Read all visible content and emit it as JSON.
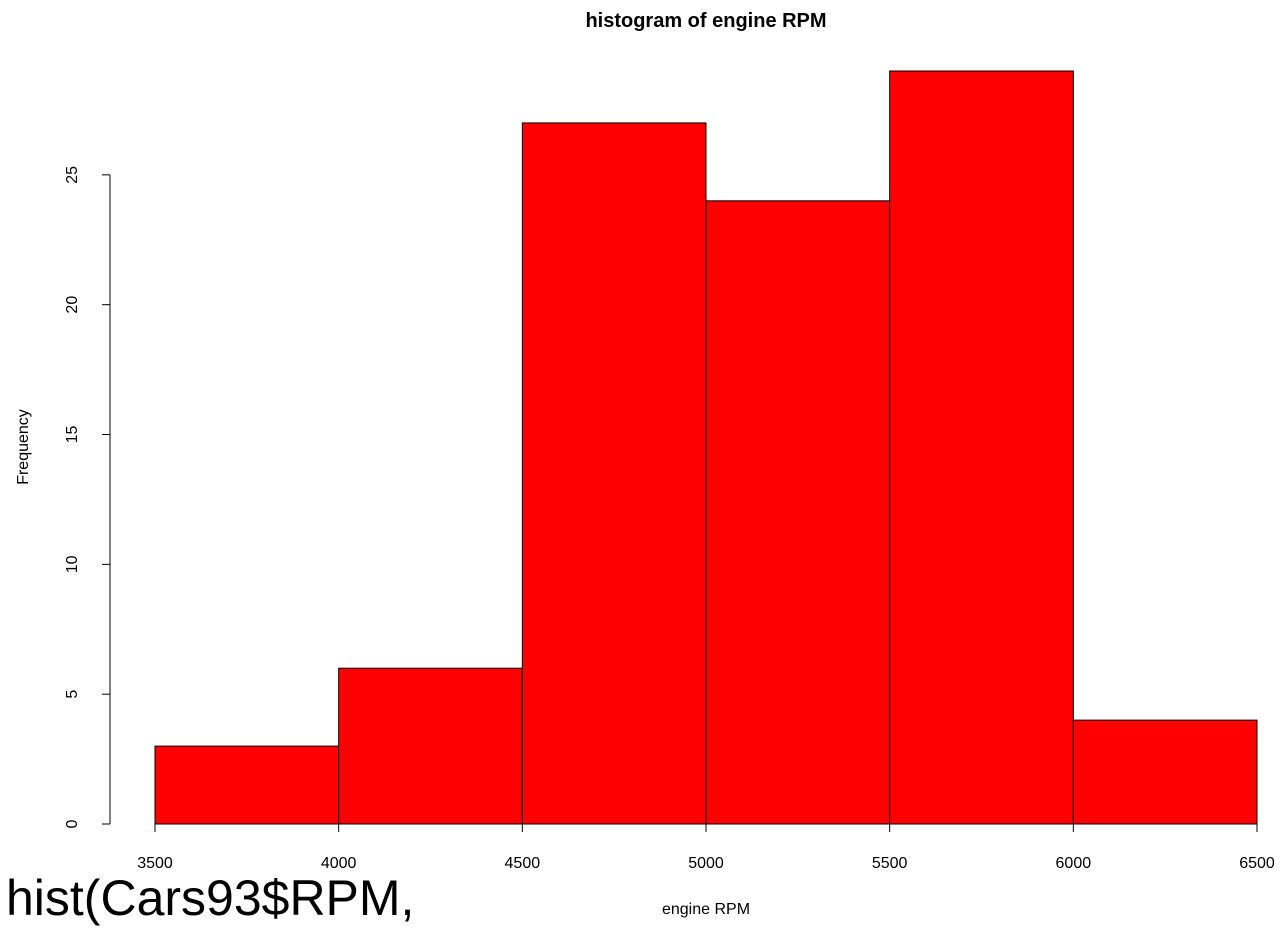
{
  "chart_data": {
    "type": "bar",
    "title": "histogram of engine RPM",
    "xlabel": "engine RPM",
    "ylabel": "Frequency",
    "bins": [
      {
        "from": 3500,
        "to": 4000,
        "count": 3
      },
      {
        "from": 4000,
        "to": 4500,
        "count": 6
      },
      {
        "from": 4500,
        "to": 5000,
        "count": 27
      },
      {
        "from": 5000,
        "to": 5500,
        "count": 24
      },
      {
        "from": 5500,
        "to": 6000,
        "count": 29
      },
      {
        "from": 6000,
        "to": 6500,
        "count": 4
      }
    ],
    "xlim": [
      3500,
      6500
    ],
    "ylim": [
      0,
      29
    ],
    "x_ticks": [
      "3500",
      "4000",
      "4500",
      "5000",
      "5500",
      "6000",
      "6500"
    ],
    "y_ticks": [
      "0",
      "5",
      "10",
      "15",
      "20",
      "25"
    ],
    "bar_color": "#ff0000",
    "grid": false
  },
  "overlay_code": "hist(Cars93$RPM,"
}
